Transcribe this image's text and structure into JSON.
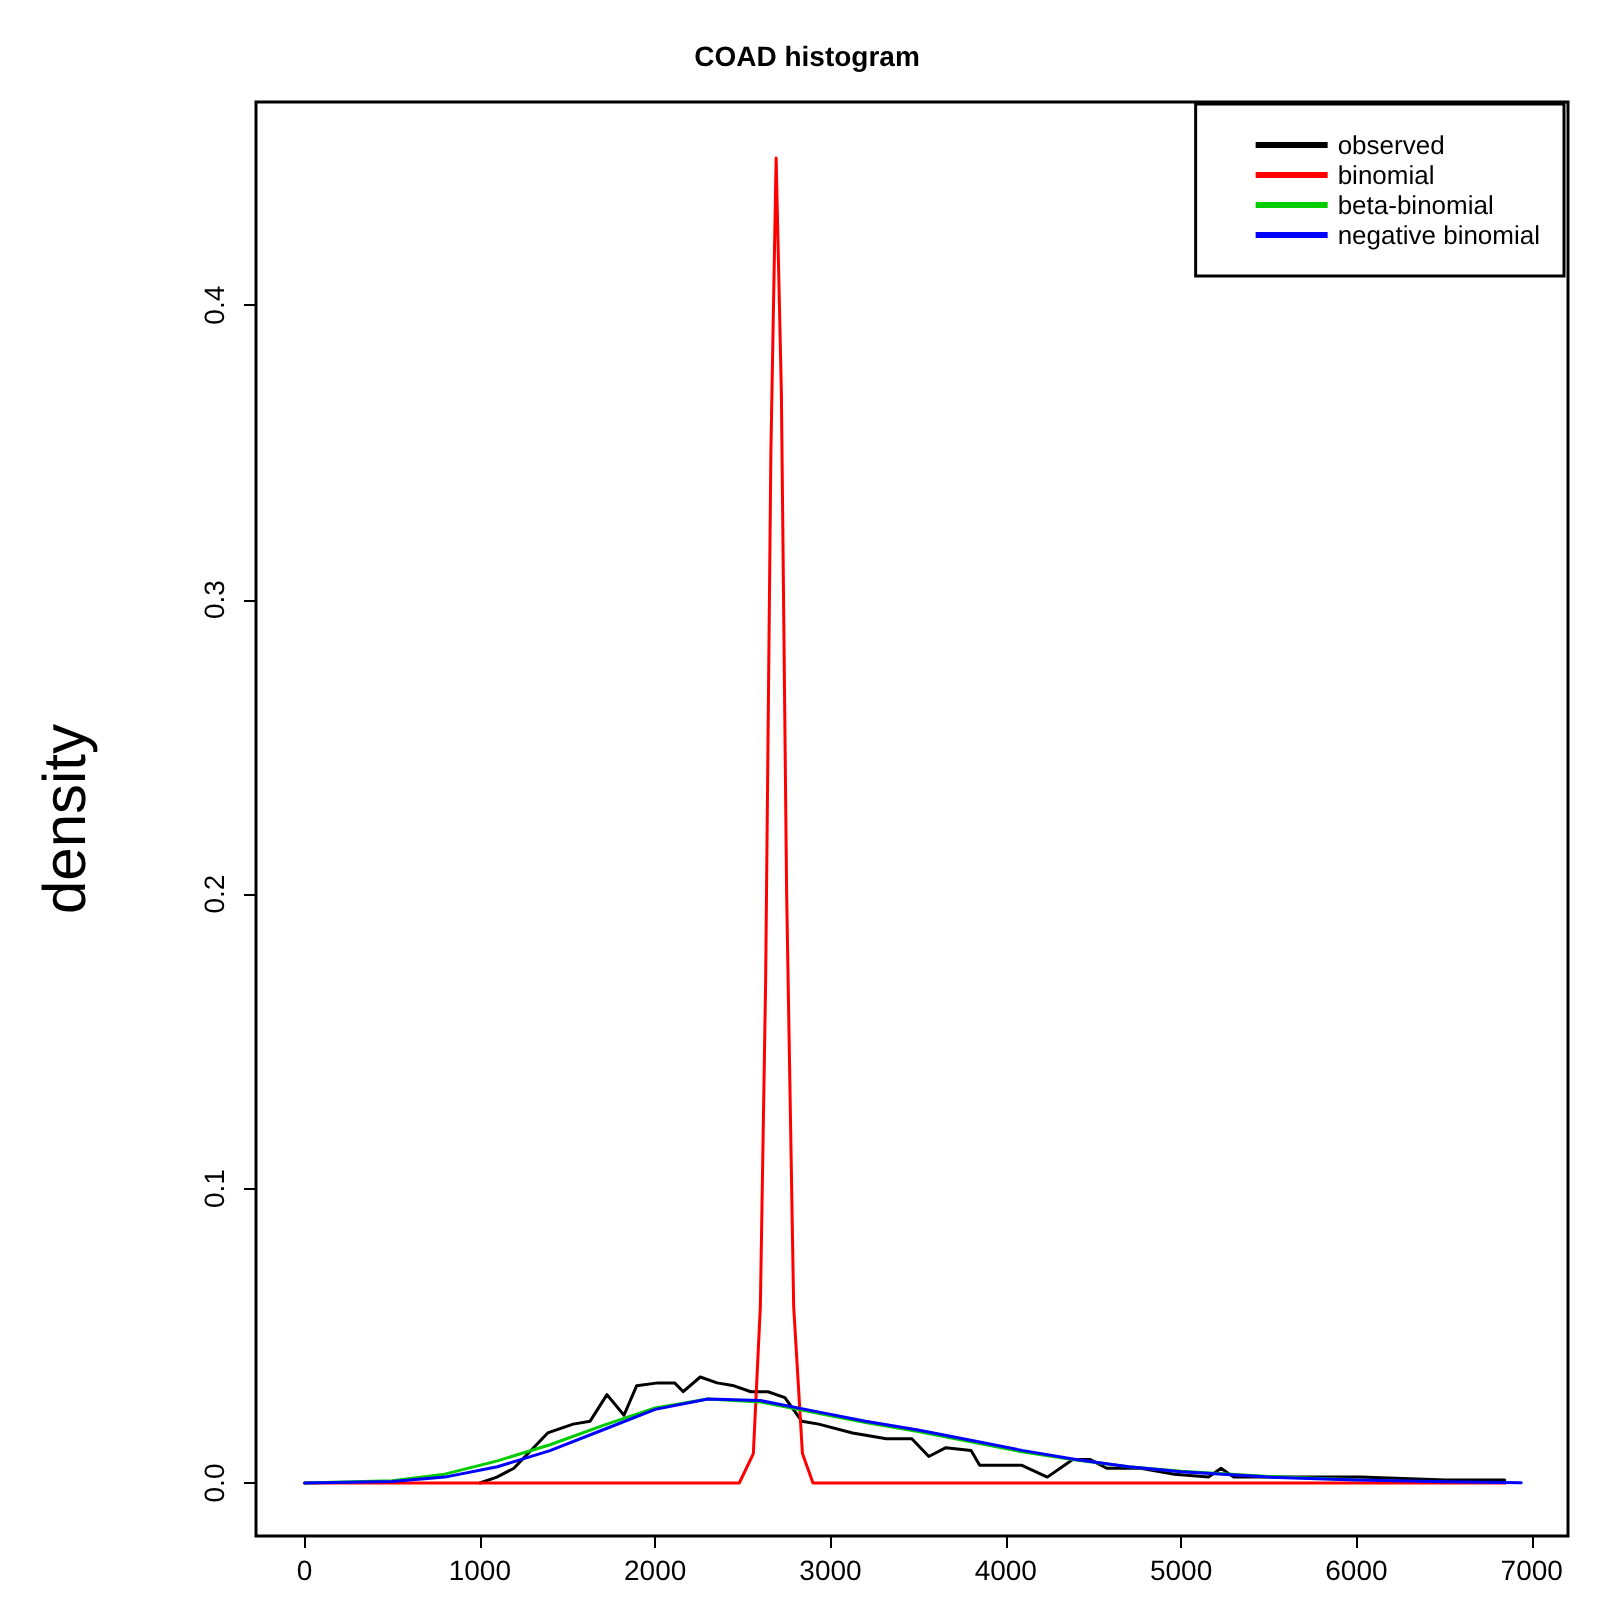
{
  "chart_data": {
    "type": "line",
    "title": "COAD histogram",
    "ylabel": "density",
    "xlim": [
      -277,
      7207
    ],
    "xticks": [
      0,
      1000,
      2000,
      3000,
      4000,
      5000,
      6000,
      7000
    ],
    "ylim": [
      -0.018,
      0.469
    ],
    "yticks": [
      {
        "value": 0,
        "label": "0.0"
      },
      0.1,
      0.2,
      0.3,
      0.4
    ],
    "legend": "top right",
    "grid": false,
    "marker": "none",
    "line_style": "solid",
    "series": [
      {
        "name": "observed",
        "color": "#000000",
        "x": [
          1000,
          1097,
          1194,
          1387,
          1532,
          1629,
          1725,
          1822,
          1894,
          2015,
          2111,
          2160,
          2257,
          2353,
          2450,
          2546,
          2643,
          2740,
          2836,
          2933,
          3126,
          3319,
          3464,
          3561,
          3658,
          3802,
          3851,
          4092,
          4237,
          4382,
          4479,
          4576,
          4769,
          4962,
          5156,
          5228,
          5300,
          5541,
          6024,
          6508,
          6846
        ],
        "values": [
          0,
          0.002,
          0.005,
          0.017,
          0.02,
          0.021,
          0.03,
          0.023,
          0.033,
          0.034,
          0.034,
          0.031,
          0.036,
          0.034,
          0.033,
          0.031,
          0.031,
          0.029,
          0.021,
          0.02,
          0.017,
          0.015,
          0.015,
          0.009,
          0.012,
          0.011,
          0.006,
          0.006,
          0.002,
          0.008,
          0.008,
          0.005,
          0.005,
          0.003,
          0.002,
          0.005,
          0.002,
          0.002,
          0.002,
          0.001,
          0.001
        ]
      },
      {
        "name": "binomial",
        "color": "#ff0000",
        "x": [
          0,
          2480,
          2560,
          2600,
          2630,
          2660,
          2690,
          2720,
          2750,
          2790,
          2840,
          2900,
          6850
        ],
        "values": [
          0,
          0,
          0.01,
          0.06,
          0.17,
          0.35,
          0.45,
          0.37,
          0.2,
          0.06,
          0.01,
          0,
          0
        ]
      },
      {
        "name": "beta-binomial",
        "color": "#00cc00",
        "x": [
          0,
          500,
          800,
          1100,
          1400,
          1700,
          2000,
          2300,
          2600,
          2900,
          3200,
          3500,
          3800,
          4100,
          4400,
          4700,
          5000,
          5500,
          6000
        ],
        "values": [
          0,
          0.0008,
          0.003,
          0.0075,
          0.013,
          0.0195,
          0.0255,
          0.0285,
          0.0275,
          0.024,
          0.0205,
          0.0175,
          0.014,
          0.0105,
          0.0078,
          0.0055,
          0.004,
          0.0022,
          0.0011
        ]
      },
      {
        "name": "negative binomial",
        "color": "#0000ff",
        "x": [
          0,
          500,
          800,
          1100,
          1400,
          1700,
          2000,
          2300,
          2600,
          2900,
          3200,
          3500,
          3800,
          4100,
          4400,
          4700,
          5000,
          5500,
          6000,
          6500,
          6940
        ],
        "values": [
          0,
          0.0005,
          0.002,
          0.0055,
          0.011,
          0.018,
          0.025,
          0.0285,
          0.028,
          0.0245,
          0.021,
          0.018,
          0.0145,
          0.011,
          0.008,
          0.0055,
          0.0038,
          0.002,
          0.001,
          0.0004,
          0.0001
        ]
      }
    ]
  }
}
